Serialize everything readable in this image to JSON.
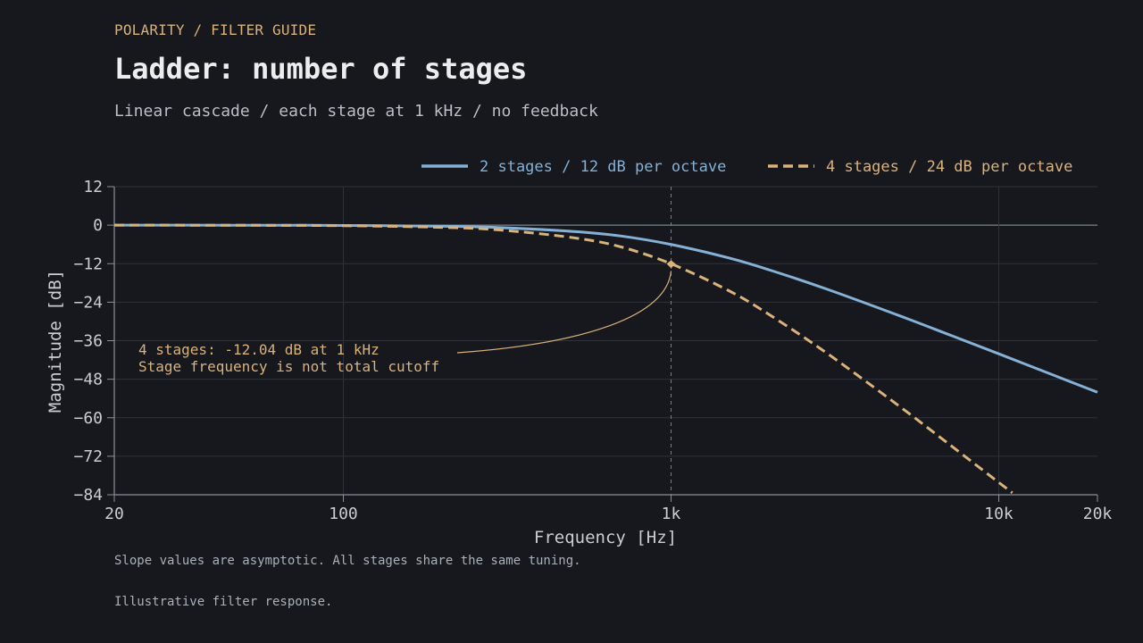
{
  "header": {
    "kicker": "POLARITY / FILTER GUIDE",
    "title": "Ladder: number of stages",
    "subtitle": "Linear cascade / each stage at 1 kHz / no feedback"
  },
  "footer": {
    "note": "Slope values are asymptotic. All stages share the same tuning.",
    "caption": "Illustrative filter response."
  },
  "colors": {
    "background": "#16181d",
    "grid": "#2e3239",
    "axis": "#8a909a",
    "tick_text": "#c9cdd4",
    "series_2": "#86b1d6",
    "series_4": "#d9b27c"
  },
  "chart_data": {
    "type": "line",
    "xlabel": "Frequency [Hz]",
    "ylabel": "Magnitude [dB]",
    "x_scale": "log",
    "xlim": [
      20,
      20000
    ],
    "ylim": [
      -84,
      12
    ],
    "x_ticks": [
      {
        "value": 20,
        "label": "20"
      },
      {
        "value": 100,
        "label": "100"
      },
      {
        "value": 1000,
        "label": "1k"
      },
      {
        "value": 10000,
        "label": "10k"
      },
      {
        "value": 20000,
        "label": "20k"
      }
    ],
    "y_ticks": [
      12,
      0,
      -12,
      -24,
      -36,
      -48,
      -60,
      -72,
      -84
    ],
    "grid": true,
    "legend_position": "top-right",
    "stage_frequency_hz": 1000,
    "series": [
      {
        "name": "2 stages / 12 dB per octave",
        "style": "solid",
        "x": [
          20,
          50,
          100,
          200,
          300,
          500,
          700,
          1000,
          1500,
          2000,
          3000,
          5000,
          7000,
          10000,
          15000,
          20000
        ],
        "y": [
          -0.01,
          -0.02,
          -0.09,
          -0.34,
          -0.75,
          -1.94,
          -3.36,
          -6.02,
          -10.21,
          -13.98,
          -20.0,
          -28.3,
          -34.0,
          -40.09,
          -47.1,
          -52.07
        ]
      },
      {
        "name": "4 stages / 24 dB per octave",
        "style": "dashed",
        "x": [
          20,
          50,
          100,
          200,
          300,
          500,
          700,
          1000,
          1500,
          2000,
          3000,
          5000,
          7000,
          10000,
          11000
        ],
        "y": [
          -0.01,
          -0.04,
          -0.17,
          -0.68,
          -1.5,
          -3.88,
          -6.72,
          -12.04,
          -20.42,
          -27.96,
          -40.0,
          -56.6,
          -68.0,
          -80.17,
          -83.4
        ]
      }
    ],
    "annotation": {
      "lines": [
        "4 stages: -12.04 dB at 1 kHz",
        "Stage frequency is not total cutoff"
      ],
      "point": {
        "x": 1000,
        "y": -12.04
      }
    }
  }
}
